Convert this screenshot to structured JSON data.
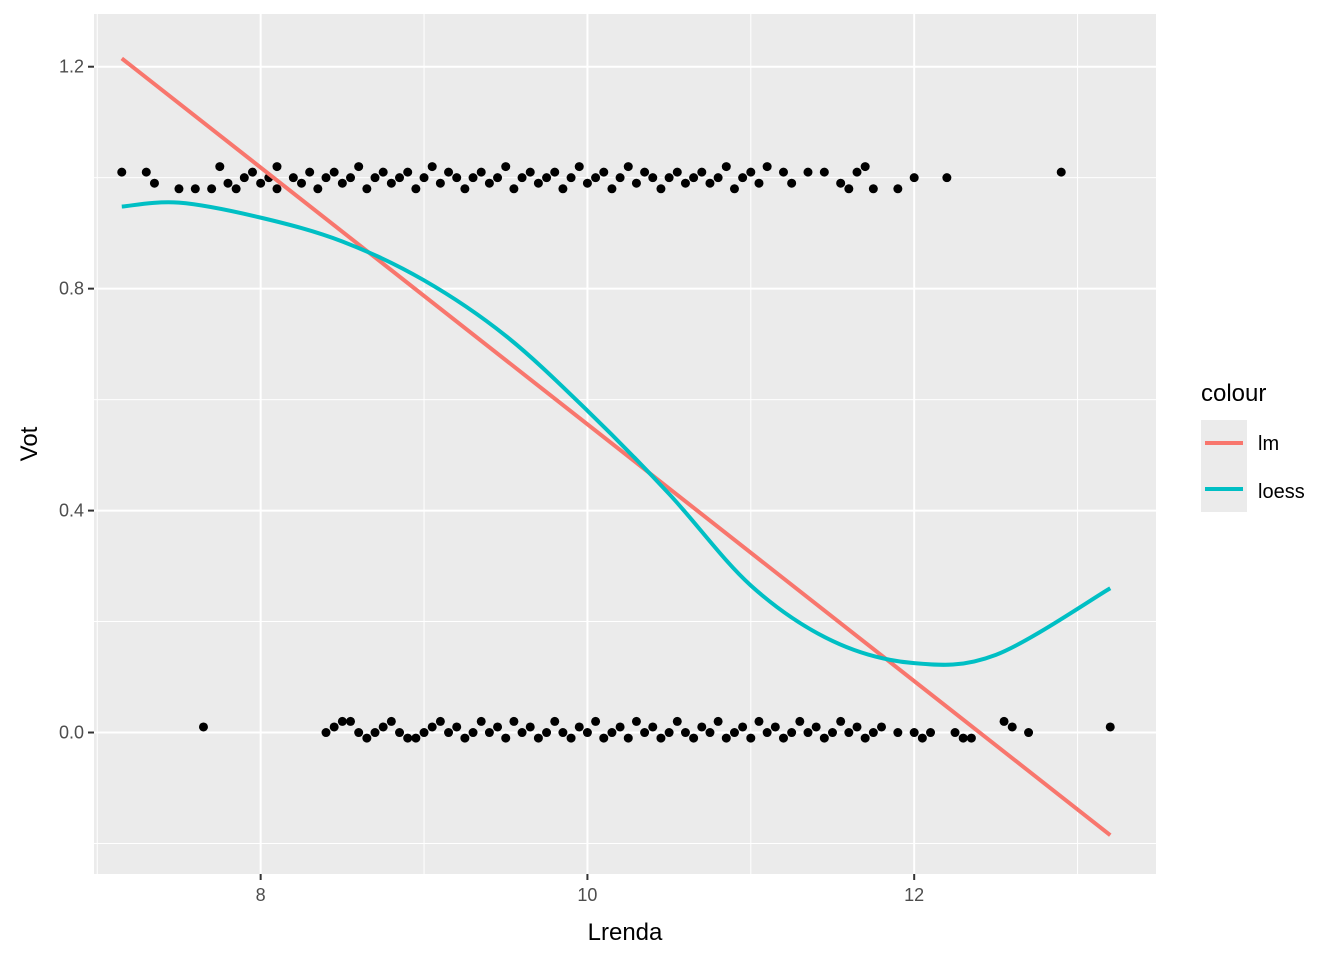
{
  "chart_data": {
    "type": "scatter",
    "xlabel": "Lrenda",
    "ylabel": "Vot",
    "xlim": [
      6.98,
      13.48
    ],
    "ylim": [
      -0.255,
      1.295
    ],
    "x_ticks": [
      8,
      10,
      12
    ],
    "x_tick_labels": [
      "8",
      "10",
      "12"
    ],
    "y_ticks": [
      0.0,
      0.4,
      0.8,
      1.2
    ],
    "y_tick_labels": [
      "0.0",
      "0.4",
      "0.8",
      "1.2"
    ],
    "grid": true,
    "background": "#EBEBEB",
    "legend": {
      "title": "colour",
      "position": "right",
      "entries": [
        {
          "label": "lm",
          "color": "#F8766D"
        },
        {
          "label": "loess",
          "color": "#00BFC4"
        }
      ]
    },
    "series": [
      {
        "name": "lm",
        "kind": "line",
        "color": "#F8766D",
        "x": [
          7.15,
          13.2
        ],
        "y": [
          1.215,
          -0.185
        ]
      },
      {
        "name": "loess",
        "kind": "line",
        "color": "#00BFC4",
        "x": [
          7.15,
          7.5,
          8.0,
          8.5,
          9.0,
          9.5,
          10.0,
          10.5,
          11.0,
          11.5,
          12.0,
          12.5,
          13.2
        ],
        "y": [
          0.948,
          0.955,
          0.928,
          0.885,
          0.815,
          0.715,
          0.58,
          0.43,
          0.265,
          0.165,
          0.125,
          0.14,
          0.26
        ]
      }
    ],
    "points": {
      "color": "#000000",
      "y1": [
        [
          7.15,
          1.01
        ],
        [
          7.3,
          1.01
        ],
        [
          7.35,
          0.99
        ],
        [
          7.5,
          0.98
        ],
        [
          7.6,
          0.98
        ],
        [
          7.7,
          0.98
        ],
        [
          7.75,
          1.02
        ],
        [
          7.8,
          0.99
        ],
        [
          7.85,
          0.98
        ],
        [
          7.9,
          1.0
        ],
        [
          7.95,
          1.01
        ],
        [
          8.0,
          0.99
        ],
        [
          8.05,
          1.0
        ],
        [
          8.1,
          1.02
        ],
        [
          8.1,
          0.98
        ],
        [
          8.2,
          1.0
        ],
        [
          8.25,
          0.99
        ],
        [
          8.3,
          1.01
        ],
        [
          8.35,
          0.98
        ],
        [
          8.4,
          1.0
        ],
        [
          8.45,
          1.01
        ],
        [
          8.5,
          0.99
        ],
        [
          8.55,
          1.0
        ],
        [
          8.6,
          1.02
        ],
        [
          8.65,
          0.98
        ],
        [
          8.7,
          1.0
        ],
        [
          8.75,
          1.01
        ],
        [
          8.8,
          0.99
        ],
        [
          8.85,
          1.0
        ],
        [
          8.9,
          1.01
        ],
        [
          8.95,
          0.98
        ],
        [
          9.0,
          1.0
        ],
        [
          9.05,
          1.02
        ],
        [
          9.1,
          0.99
        ],
        [
          9.15,
          1.01
        ],
        [
          9.2,
          1.0
        ],
        [
          9.25,
          0.98
        ],
        [
          9.3,
          1.0
        ],
        [
          9.35,
          1.01
        ],
        [
          9.4,
          0.99
        ],
        [
          9.45,
          1.0
        ],
        [
          9.5,
          1.02
        ],
        [
          9.55,
          0.98
        ],
        [
          9.6,
          1.0
        ],
        [
          9.65,
          1.01
        ],
        [
          9.7,
          0.99
        ],
        [
          9.75,
          1.0
        ],
        [
          9.8,
          1.01
        ],
        [
          9.85,
          0.98
        ],
        [
          9.9,
          1.0
        ],
        [
          9.95,
          1.02
        ],
        [
          10.0,
          0.99
        ],
        [
          10.05,
          1.0
        ],
        [
          10.1,
          1.01
        ],
        [
          10.15,
          0.98
        ],
        [
          10.2,
          1.0
        ],
        [
          10.25,
          1.02
        ],
        [
          10.3,
          0.99
        ],
        [
          10.35,
          1.01
        ],
        [
          10.4,
          1.0
        ],
        [
          10.45,
          0.98
        ],
        [
          10.5,
          1.0
        ],
        [
          10.55,
          1.01
        ],
        [
          10.6,
          0.99
        ],
        [
          10.65,
          1.0
        ],
        [
          10.7,
          1.01
        ],
        [
          10.75,
          0.99
        ],
        [
          10.8,
          1.0
        ],
        [
          10.85,
          1.02
        ],
        [
          10.9,
          0.98
        ],
        [
          10.95,
          1.0
        ],
        [
          11.0,
          1.01
        ],
        [
          11.05,
          0.99
        ],
        [
          11.1,
          1.02
        ],
        [
          11.2,
          1.01
        ],
        [
          11.25,
          0.99
        ],
        [
          11.35,
          1.01
        ],
        [
          11.45,
          1.01
        ],
        [
          11.55,
          0.99
        ],
        [
          11.6,
          0.98
        ],
        [
          11.65,
          1.01
        ],
        [
          11.7,
          1.02
        ],
        [
          11.75,
          0.98
        ],
        [
          11.9,
          0.98
        ],
        [
          12.0,
          1.0
        ],
        [
          12.2,
          1.0
        ],
        [
          12.9,
          1.01
        ]
      ],
      "y0": [
        [
          7.65,
          0.01
        ],
        [
          8.4,
          0.0
        ],
        [
          8.45,
          0.01
        ],
        [
          8.5,
          0.02
        ],
        [
          8.55,
          0.02
        ],
        [
          8.6,
          0.0
        ],
        [
          8.65,
          -0.01
        ],
        [
          8.7,
          0.0
        ],
        [
          8.75,
          0.01
        ],
        [
          8.8,
          0.02
        ],
        [
          8.85,
          0.0
        ],
        [
          8.9,
          -0.01
        ],
        [
          8.95,
          -0.01
        ],
        [
          9.0,
          0.0
        ],
        [
          9.05,
          0.01
        ],
        [
          9.1,
          0.02
        ],
        [
          9.15,
          0.0
        ],
        [
          9.2,
          0.01
        ],
        [
          9.25,
          -0.01
        ],
        [
          9.3,
          0.0
        ],
        [
          9.35,
          0.02
        ],
        [
          9.4,
          0.0
        ],
        [
          9.45,
          0.01
        ],
        [
          9.5,
          -0.01
        ],
        [
          9.55,
          0.02
        ],
        [
          9.6,
          0.0
        ],
        [
          9.65,
          0.01
        ],
        [
          9.7,
          -0.01
        ],
        [
          9.75,
          0.0
        ],
        [
          9.8,
          0.02
        ],
        [
          9.85,
          0.0
        ],
        [
          9.9,
          -0.01
        ],
        [
          9.95,
          0.01
        ],
        [
          10.0,
          0.0
        ],
        [
          10.05,
          0.02
        ],
        [
          10.1,
          -0.01
        ],
        [
          10.15,
          0.0
        ],
        [
          10.2,
          0.01
        ],
        [
          10.25,
          -0.01
        ],
        [
          10.3,
          0.02
        ],
        [
          10.35,
          0.0
        ],
        [
          10.4,
          0.01
        ],
        [
          10.45,
          -0.01
        ],
        [
          10.5,
          0.0
        ],
        [
          10.55,
          0.02
        ],
        [
          10.6,
          0.0
        ],
        [
          10.65,
          -0.01
        ],
        [
          10.7,
          0.01
        ],
        [
          10.75,
          0.0
        ],
        [
          10.8,
          0.02
        ],
        [
          10.85,
          -0.01
        ],
        [
          10.9,
          0.0
        ],
        [
          10.95,
          0.01
        ],
        [
          11.0,
          -0.01
        ],
        [
          11.05,
          0.02
        ],
        [
          11.1,
          0.0
        ],
        [
          11.15,
          0.01
        ],
        [
          11.2,
          -0.01
        ],
        [
          11.25,
          0.0
        ],
        [
          11.3,
          0.02
        ],
        [
          11.35,
          0.0
        ],
        [
          11.4,
          0.01
        ],
        [
          11.45,
          -0.01
        ],
        [
          11.5,
          0.0
        ],
        [
          11.55,
          0.02
        ],
        [
          11.6,
          0.0
        ],
        [
          11.65,
          0.01
        ],
        [
          11.7,
          -0.01
        ],
        [
          11.75,
          0.0
        ],
        [
          11.8,
          0.01
        ],
        [
          11.9,
          0.0
        ],
        [
          12.0,
          0.0
        ],
        [
          12.05,
          -0.01
        ],
        [
          12.1,
          0.0
        ],
        [
          12.25,
          0.0
        ],
        [
          12.3,
          -0.01
        ],
        [
          12.35,
          -0.01
        ],
        [
          12.55,
          0.02
        ],
        [
          12.6,
          0.01
        ],
        [
          12.7,
          0.0
        ],
        [
          13.2,
          0.01
        ]
      ]
    }
  }
}
